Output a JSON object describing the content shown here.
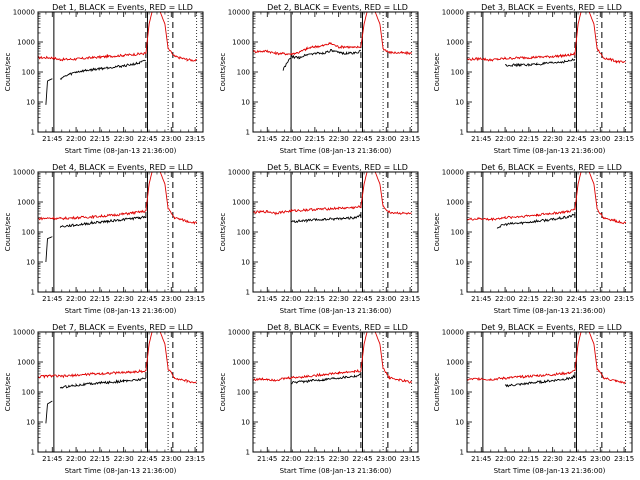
{
  "chart_data": {
    "type": "line",
    "yscale": "log",
    "ylim": [
      1,
      10000
    ],
    "xlim": [
      "21:36",
      "23:20"
    ],
    "xticks": [
      "21:45",
      "22:00",
      "22:15",
      "22:30",
      "22:45",
      "23:00",
      "23:15"
    ],
    "yticks": [
      "1",
      "10",
      "100",
      "1000",
      "10000"
    ],
    "ylabel": "Counts/sec",
    "xlabel": "Start Time (08-Jan-13 21:36:00)",
    "series_styles": [
      {
        "name": "Events",
        "color": "#000000"
      },
      {
        "name": "LLD",
        "color": "#e00000"
      }
    ],
    "panels": [
      {
        "title": "Det 1, BLACK = Events, RED = LLD",
        "events": {
          "x": [
            "21:36",
            "21:38",
            "21:39",
            "21:41",
            "21:42",
            "21:45",
            "21:46",
            "21:50",
            "21:55",
            "22:00",
            "22:10",
            "22:20",
            "22:30",
            "22:40",
            "22:44",
            "22:46",
            "22:48",
            "22:50",
            "22:53",
            "22:56",
            "23:02"
          ],
          "y": [
            null,
            null,
            null,
            8,
            50,
            60,
            null,
            60,
            80,
            100,
            120,
            140,
            160,
            200,
            240,
            null,
            null,
            null,
            null,
            null,
            null
          ]
        },
        "lld": {
          "x": [
            "21:36",
            "21:45",
            "21:50",
            "22:00",
            "22:10",
            "22:20",
            "22:30",
            "22:40",
            "22:44",
            "22:46",
            "22:48",
            "22:50",
            "22:53",
            "22:56",
            "22:58",
            "23:02",
            "23:10",
            "23:16"
          ],
          "y": [
            300,
            300,
            260,
            270,
            300,
            330,
            360,
            400,
            420,
            4000,
            10500,
            11000,
            10000,
            4000,
            600,
            330,
            260,
            240
          ]
        },
        "solid_lines": [
          "21:46",
          "22:45"
        ],
        "dashed_lines": [
          "22:44",
          "23:01"
        ],
        "dotted_lines": [
          "22:58",
          "23:16"
        ]
      },
      {
        "title": "Det 2, BLACK = Events, RED = LLD",
        "events": {
          "x": [
            "21:36",
            "21:40",
            "21:44",
            "21:46",
            "21:50",
            "21:55",
            "22:00",
            "22:05",
            "22:10",
            "22:15",
            "22:20",
            "22:25",
            "22:30",
            "22:35",
            "22:40",
            "22:44"
          ],
          "y": [
            null,
            null,
            null,
            null,
            null,
            120,
            320,
            300,
            380,
            420,
            420,
            520,
            440,
            420,
            430,
            500
          ]
        },
        "lld": {
          "x": [
            "21:36",
            "21:45",
            "21:50",
            "22:00",
            "22:05",
            "22:10",
            "22:15",
            "22:20",
            "22:25",
            "22:30",
            "22:35",
            "22:40",
            "22:44",
            "22:46",
            "22:48",
            "22:50",
            "22:53",
            "22:56",
            "22:58",
            "23:02",
            "23:10",
            "23:16"
          ],
          "y": [
            480,
            500,
            420,
            400,
            450,
            600,
            700,
            750,
            900,
            680,
            700,
            650,
            700,
            4000,
            10500,
            11000,
            10000,
            4000,
            600,
            450,
            430,
            420
          ]
        },
        "solid_lines": [
          "22:00",
          "22:45"
        ],
        "dashed_lines": [
          "22:44",
          "23:01"
        ],
        "dotted_lines": [
          "22:58",
          "23:16"
        ]
      },
      {
        "title": "Det 3, BLACK = Events, RED = LLD",
        "events": {
          "x": [
            "21:36",
            "21:44",
            "21:46",
            "21:50",
            "21:55",
            "22:00",
            "22:10",
            "22:20",
            "22:30",
            "22:40",
            "22:44"
          ],
          "y": [
            null,
            null,
            null,
            null,
            null,
            170,
            170,
            180,
            200,
            230,
            260
          ]
        },
        "lld": {
          "x": [
            "21:36",
            "21:45",
            "21:50",
            "22:00",
            "22:10",
            "22:20",
            "22:30",
            "22:40",
            "22:44",
            "22:46",
            "22:48",
            "22:50",
            "22:53",
            "22:56",
            "22:58",
            "23:02",
            "23:10",
            "23:16"
          ],
          "y": [
            260,
            280,
            250,
            280,
            300,
            310,
            330,
            360,
            400,
            4000,
            10500,
            11000,
            10000,
            4000,
            600,
            300,
            230,
            200
          ]
        },
        "solid_lines": [
          "21:46",
          "22:45"
        ],
        "dashed_lines": [
          "22:44",
          "23:01"
        ],
        "dotted_lines": [
          "22:58",
          "23:16"
        ]
      },
      {
        "title": "Det 4, BLACK = Events, RED = LLD",
        "events": {
          "x": [
            "21:36",
            "21:38",
            "21:39",
            "21:41",
            "21:42",
            "21:45",
            "21:46",
            "21:50",
            "22:00",
            "22:10",
            "22:20",
            "22:30",
            "22:40",
            "22:44"
          ],
          "y": [
            null,
            null,
            null,
            10,
            60,
            70,
            null,
            150,
            170,
            200,
            230,
            260,
            300,
            320
          ]
        },
        "lld": {
          "x": [
            "21:36",
            "21:45",
            "21:50",
            "22:00",
            "22:10",
            "22:20",
            "22:30",
            "22:40",
            "22:44",
            "22:46",
            "22:48",
            "22:50",
            "22:53",
            "22:56",
            "22:58",
            "23:02",
            "23:10",
            "23:16"
          ],
          "y": [
            280,
            290,
            280,
            300,
            320,
            350,
            400,
            460,
            500,
            4000,
            10500,
            11000,
            10000,
            4000,
            600,
            300,
            230,
            200
          ]
        },
        "solid_lines": [
          "21:46",
          "22:45"
        ],
        "dashed_lines": [
          "22:44",
          "23:01"
        ],
        "dotted_lines": [
          "22:58",
          "23:16"
        ]
      },
      {
        "title": "Det 5, BLACK = Events, RED = LLD",
        "events": {
          "x": [
            "21:36",
            "21:40",
            "21:44",
            "21:46",
            "21:50",
            "22:00",
            "22:10",
            "22:20",
            "22:30",
            "22:40",
            "22:44"
          ],
          "y": [
            null,
            null,
            null,
            null,
            null,
            220,
            240,
            260,
            280,
            300,
            350
          ]
        },
        "lld": {
          "x": [
            "21:36",
            "21:45",
            "21:50",
            "22:00",
            "22:10",
            "22:20",
            "22:30",
            "22:40",
            "22:44",
            "22:46",
            "22:48",
            "22:50",
            "22:53",
            "22:56",
            "22:58",
            "23:02",
            "23:10",
            "23:16"
          ],
          "y": [
            450,
            480,
            430,
            500,
            550,
            580,
            620,
            650,
            700,
            4000,
            10500,
            11000,
            10000,
            4000,
            700,
            450,
            420,
            400
          ]
        },
        "solid_lines": [
          "22:00",
          "22:45"
        ],
        "dashed_lines": [
          "22:44",
          "23:01"
        ],
        "dotted_lines": [
          "22:58",
          "23:16"
        ]
      },
      {
        "title": "Det 6, BLACK = Events, RED = LLD",
        "events": {
          "x": [
            "21:36",
            "21:42",
            "21:44",
            "21:46",
            "21:50",
            "21:55",
            "22:00",
            "22:10",
            "22:20",
            "22:30",
            "22:40",
            "22:44"
          ],
          "y": [
            null,
            null,
            null,
            null,
            null,
            140,
            180,
            200,
            230,
            260,
            320,
            380
          ]
        },
        "lld": {
          "x": [
            "21:36",
            "21:45",
            "21:50",
            "22:00",
            "22:10",
            "22:20",
            "22:30",
            "22:40",
            "22:44",
            "22:46",
            "22:48",
            "22:50",
            "22:53",
            "22:56",
            "22:58",
            "23:02",
            "23:10",
            "23:16"
          ],
          "y": [
            260,
            280,
            260,
            300,
            330,
            370,
            420,
            480,
            560,
            4000,
            10500,
            11000,
            10000,
            4000,
            600,
            300,
            230,
            200
          ]
        },
        "solid_lines": [
          "21:46",
          "22:45"
        ],
        "dashed_lines": [
          "22:44",
          "23:01"
        ],
        "dotted_lines": [
          "22:58",
          "23:16"
        ]
      },
      {
        "title": "Det 7, BLACK = Events, RED = LLD",
        "events": {
          "x": [
            "21:36",
            "21:38",
            "21:39",
            "21:41",
            "21:42",
            "21:45",
            "21:46",
            "21:50",
            "22:00",
            "22:10",
            "22:20",
            "22:30",
            "22:40",
            "22:44"
          ],
          "y": [
            null,
            null,
            null,
            9,
            40,
            50,
            null,
            140,
            170,
            190,
            210,
            230,
            260,
            280
          ]
        },
        "lld": {
          "x": [
            "21:36",
            "21:45",
            "21:50",
            "22:00",
            "22:10",
            "22:20",
            "22:30",
            "22:40",
            "22:44",
            "22:46",
            "22:48",
            "22:50",
            "22:53",
            "22:56",
            "22:58",
            "23:02",
            "23:10",
            "23:16"
          ],
          "y": [
            320,
            350,
            330,
            360,
            400,
            420,
            450,
            480,
            500,
            4000,
            10500,
            11000,
            10000,
            4000,
            600,
            300,
            230,
            200
          ]
        },
        "solid_lines": [
          "21:46",
          "22:45"
        ],
        "dashed_lines": [
          "22:44",
          "23:01"
        ],
        "dotted_lines": [
          "22:58",
          "23:16"
        ]
      },
      {
        "title": "Det 8, BLACK = Events, RED = LLD",
        "events": {
          "x": [
            "21:36",
            "21:42",
            "21:44",
            "21:46",
            "21:50",
            "22:00",
            "22:10",
            "22:20",
            "22:30",
            "22:40",
            "22:44"
          ],
          "y": [
            null,
            null,
            null,
            null,
            null,
            200,
            230,
            260,
            300,
            340,
            380
          ]
        },
        "lld": {
          "x": [
            "21:36",
            "21:45",
            "21:50",
            "22:00",
            "22:10",
            "22:20",
            "22:30",
            "22:40",
            "22:44",
            "22:46",
            "22:48",
            "22:50",
            "22:53",
            "22:56",
            "22:58",
            "23:02",
            "23:10",
            "23:16"
          ],
          "y": [
            260,
            270,
            250,
            300,
            330,
            380,
            430,
            480,
            520,
            4000,
            10500,
            11000,
            10000,
            4000,
            600,
            300,
            240,
            210
          ]
        },
        "solid_lines": [
          "22:00",
          "22:45"
        ],
        "dashed_lines": [
          "22:44",
          "23:01"
        ],
        "dotted_lines": [
          "22:58",
          "23:16"
        ]
      },
      {
        "title": "Det 9, BLACK = Events, RED = LLD",
        "events": {
          "x": [
            "21:36",
            "21:44",
            "21:46",
            "21:50",
            "22:00",
            "22:10",
            "22:20",
            "22:30",
            "22:40",
            "22:44"
          ],
          "y": [
            null,
            null,
            null,
            null,
            160,
            180,
            210,
            240,
            280,
            340
          ]
        },
        "lld": {
          "x": [
            "21:36",
            "21:45",
            "21:50",
            "22:00",
            "22:10",
            "22:20",
            "22:30",
            "22:40",
            "22:44",
            "22:46",
            "22:48",
            "22:50",
            "22:53",
            "22:56",
            "22:58",
            "23:02",
            "23:10",
            "23:16"
          ],
          "y": [
            260,
            280,
            260,
            290,
            320,
            350,
            380,
            430,
            500,
            4000,
            10500,
            11000,
            10000,
            4000,
            600,
            300,
            230,
            200
          ]
        },
        "solid_lines": [
          "21:46",
          "22:45"
        ],
        "dashed_lines": [
          "22:44",
          "23:01"
        ],
        "dotted_lines": [
          "22:58",
          "23:16"
        ]
      }
    ]
  }
}
